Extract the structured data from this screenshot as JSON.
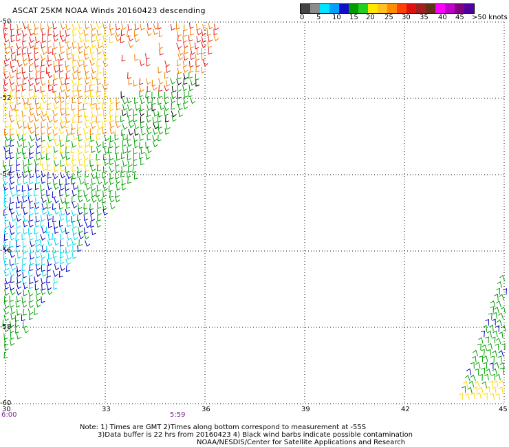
{
  "title": "ASCAT 25KM NOAA Winds 20160423 descending",
  "legend": {
    "swatches": [
      "#444444",
      "#8c8c8c",
      "#00e5ff",
      "#00a0ff",
      "#1010c8",
      "#009c00",
      "#20d020",
      "#ffe800",
      "#ffc020",
      "#ff8c00",
      "#ff4000",
      "#e01010",
      "#a02020",
      "#603018",
      "#ff00ff",
      "#c000c8",
      "#800080",
      "#5000a0"
    ],
    "labels": [
      "0",
      "5",
      "10",
      "15",
      "20",
      "25",
      "30",
      "35",
      "40",
      "45",
      ">50 knots"
    ]
  },
  "axes": {
    "lat_labels": [
      "-50",
      "-52",
      "-54",
      "-56",
      "-58",
      "-60"
    ],
    "lon_labels": [
      "30",
      "33",
      "36",
      "39",
      "42",
      "45"
    ]
  },
  "times": [
    "6:00",
    "5:59"
  ],
  "notes": [
    "Note: 1) Times are GMT 2)Times along bottom correspond to measurement at -55S",
    "3)Data buffer is 22 hrs from 20160423 4) Black wind barbs indicate possible contamination",
    "NOAA/NESDIS/Center for Satellite Applications and Research"
  ],
  "chart_data": {
    "type": "map",
    "projection": "lat-lon grid",
    "xlim": [
      30,
      45
    ],
    "ylim": [
      -60,
      -50
    ],
    "grid": true,
    "xticks": [
      30,
      33,
      36,
      39,
      42,
      45
    ],
    "yticks": [
      -50,
      -52,
      -54,
      -56,
      -58,
      -60
    ],
    "colors": {
      "calm": "#000000",
      "light": "#00d8f0",
      "moderate_blue": "#0000c0",
      "green": "#00a000",
      "yellow": "#ffd800",
      "orange": "#f08000",
      "red": "#e01818",
      "brown": "#8b4513"
    },
    "swaths": [
      {
        "name": "west",
        "lon_range": [
          30,
          36.5
        ],
        "lat_range": [
          -59.5,
          -50
        ]
      },
      {
        "name": "east",
        "lon_range": [
          43.5,
          45
        ],
        "lat_range": [
          -60,
          -57.5
        ]
      }
    ]
  }
}
